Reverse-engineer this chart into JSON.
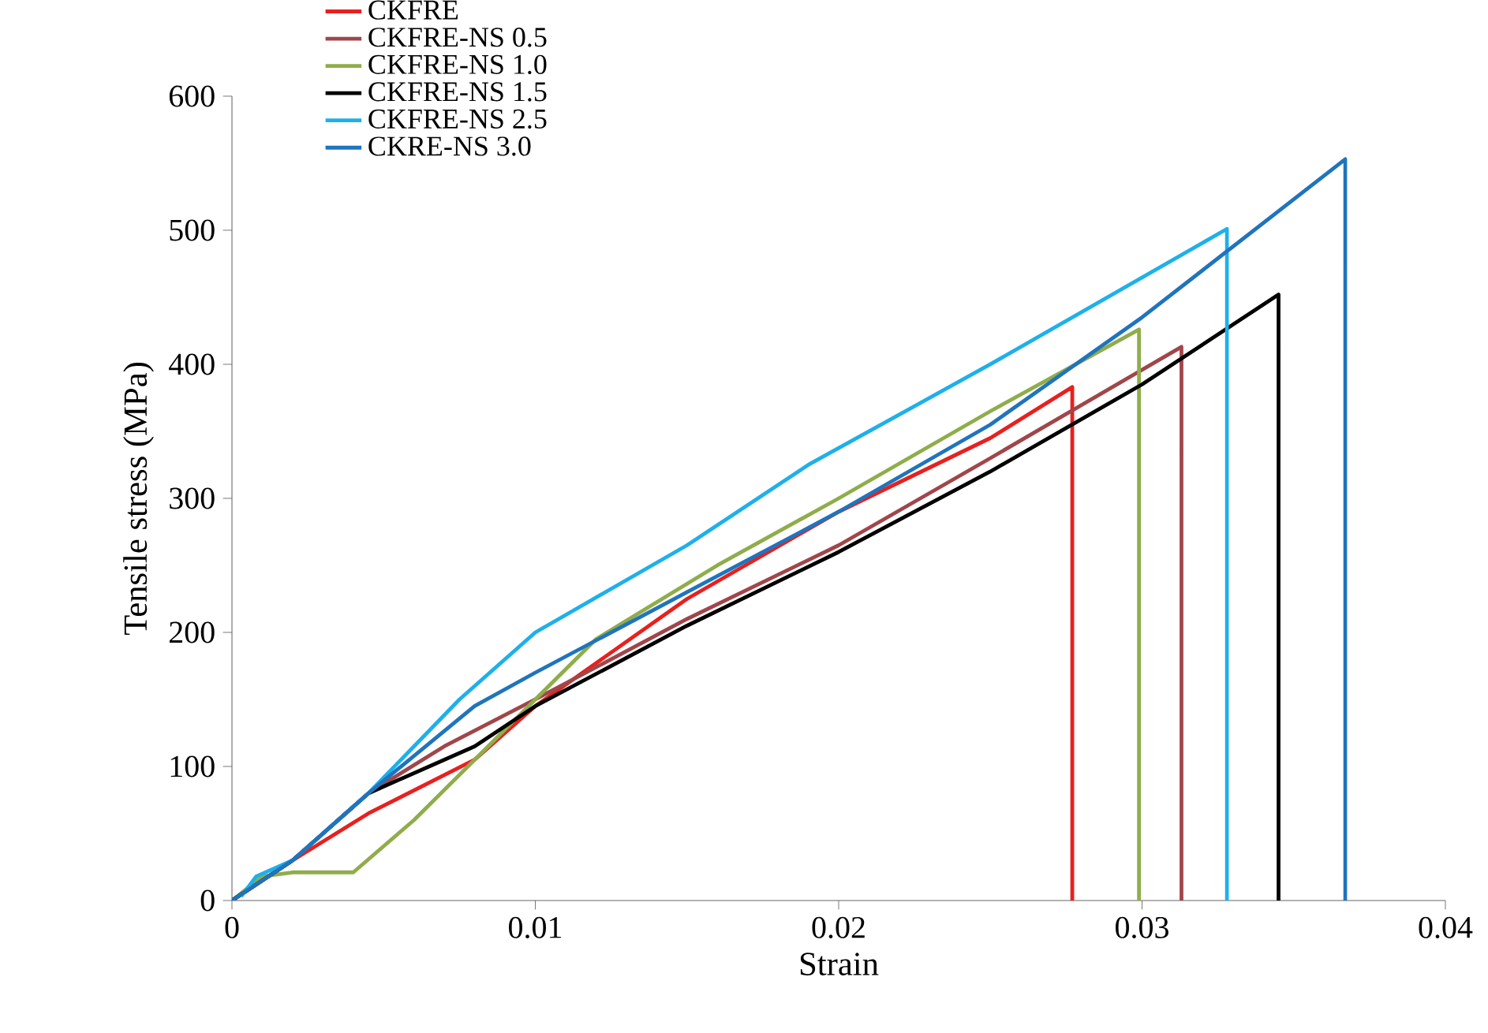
{
  "chart_data": {
    "type": "line",
    "xlabel": "Strain",
    "ylabel": "Tensile stress (MPa)",
    "xlim": [
      0,
      0.04
    ],
    "ylim": [
      0,
      600
    ],
    "xticks": [
      0,
      0.01,
      0.02,
      0.03,
      0.04
    ],
    "yticks": [
      0,
      100,
      200,
      300,
      400,
      500,
      600
    ],
    "grid": false,
    "legend": "top left",
    "marker": "none",
    "line_style": "solid",
    "series": [
      {
        "name": "CKFRE",
        "color": "#e8201e",
        "x": [
          0,
          0.001,
          0.002,
          0.0045,
          0.008,
          0.01,
          0.015,
          0.02,
          0.025,
          0.0277,
          0.0277
        ],
        "values": [
          0,
          15,
          30,
          65,
          105,
          145,
          225,
          290,
          345,
          383,
          0
        ]
      },
      {
        "name": "CKFRE-NS 0.5",
        "color": "#a0464a",
        "x": [
          0,
          0.001,
          0.002,
          0.0045,
          0.007,
          0.01,
          0.015,
          0.02,
          0.025,
          0.0313,
          0.0313
        ],
        "values": [
          0,
          15,
          30,
          80,
          115,
          150,
          210,
          265,
          330,
          413,
          0
        ]
      },
      {
        "name": "CKFRE-NS 1.0",
        "color": "#8fad4a",
        "x": [
          0,
          0.001,
          0.002,
          0.004,
          0.006,
          0.008,
          0.01,
          0.012,
          0.016,
          0.02,
          0.025,
          0.0299,
          0.0299
        ],
        "values": [
          0,
          18,
          21,
          21,
          60,
          105,
          150,
          195,
          250,
          300,
          365,
          426,
          0
        ]
      },
      {
        "name": "CKFRE-NS 1.5",
        "color": "#000000",
        "x": [
          0,
          0.001,
          0.002,
          0.0045,
          0.008,
          0.01,
          0.015,
          0.02,
          0.025,
          0.03,
          0.0345,
          0.0345
        ],
        "values": [
          0,
          15,
          30,
          80,
          115,
          145,
          205,
          260,
          320,
          385,
          452,
          0
        ]
      },
      {
        "name": "CKFRE-NS 2.5",
        "color": "#1eb0eb",
        "x": [
          0.0003,
          0.0008,
          0.002,
          0.0045,
          0.0075,
          0.01,
          0.015,
          0.019,
          0.025,
          0.0328,
          0.0328
        ],
        "values": [
          3,
          18,
          30,
          80,
          150,
          200,
          265,
          325,
          400,
          501,
          0
        ]
      },
      {
        "name": "CKRE-NS 3.0",
        "color": "#1f74bd",
        "x": [
          0,
          0.001,
          0.002,
          0.0045,
          0.008,
          0.01,
          0.015,
          0.02,
          0.025,
          0.03,
          0.0367,
          0.0367
        ],
        "values": [
          0,
          15,
          30,
          80,
          145,
          170,
          230,
          290,
          355,
          435,
          553,
          0
        ]
      }
    ]
  }
}
